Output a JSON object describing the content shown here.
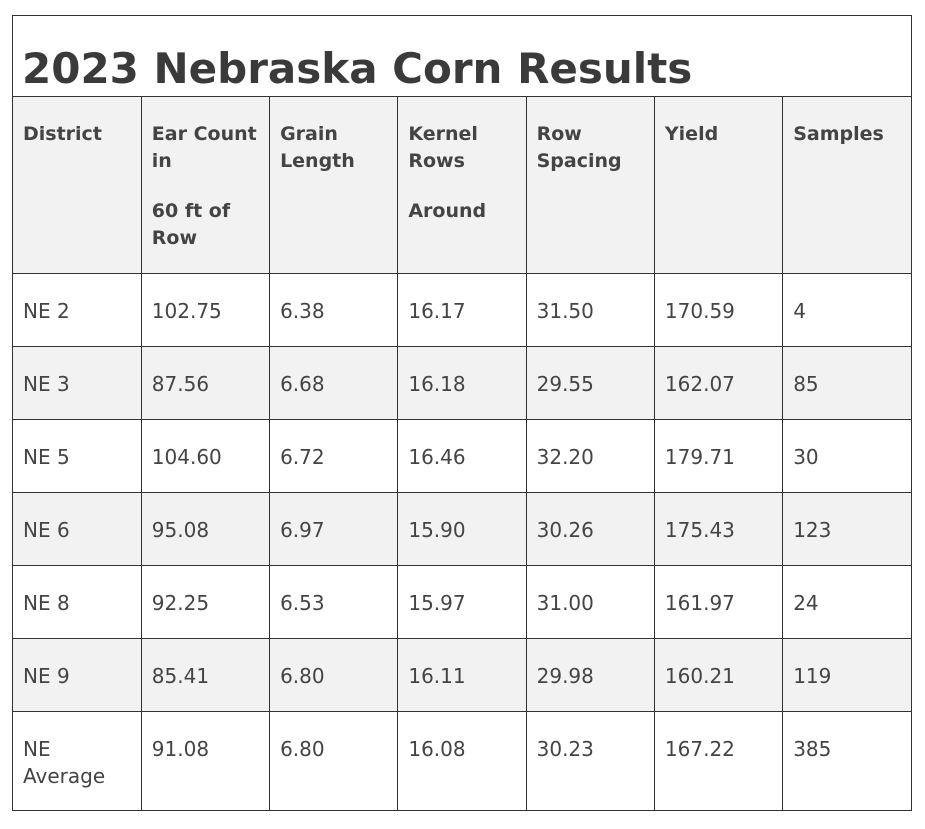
{
  "title": "2023 Nebraska Corn Results",
  "table": {
    "header": [
      [
        "District"
      ],
      [
        "Ear Count in",
        "60 ft of Row"
      ],
      [
        "Grain Length"
      ],
      [
        "Kernel Rows",
        "Around"
      ],
      [
        "Row Spacing"
      ],
      [
        "Yield"
      ],
      [
        "Samples"
      ]
    ],
    "rows": [
      [
        "NE 2",
        "102.75",
        "6.38",
        "16.17",
        "31.50",
        "170.59",
        "4"
      ],
      [
        "NE 3",
        "87.56",
        "6.68",
        "16.18",
        "29.55",
        "162.07",
        "85"
      ],
      [
        "NE 5",
        "104.60",
        "6.72",
        "16.46",
        "32.20",
        "179.71",
        "30"
      ],
      [
        "NE 6",
        "95.08",
        "6.97",
        "15.90",
        "30.26",
        "175.43",
        "123"
      ],
      [
        "NE 8",
        "92.25",
        "6.53",
        "15.97",
        "31.00",
        "161.97",
        "24"
      ],
      [
        "NE 9",
        "85.41",
        "6.80",
        "16.11",
        "29.98",
        "160.21",
        "119"
      ],
      [
        "NE Average",
        "91.08",
        "6.80",
        "16.08",
        "30.23",
        "167.22",
        "385"
      ]
    ]
  }
}
